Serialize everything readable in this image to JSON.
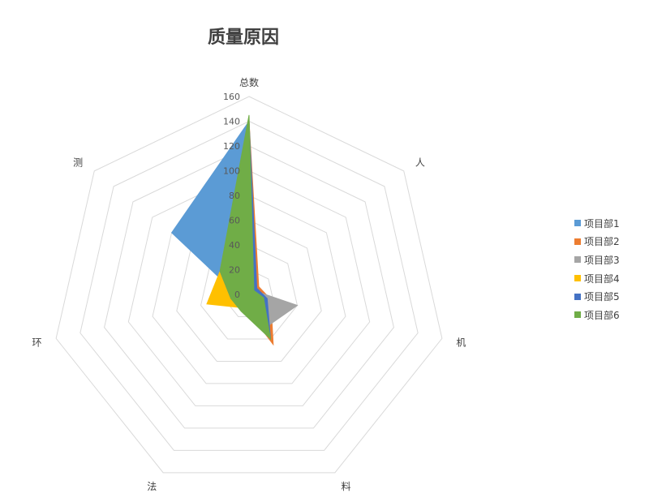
{
  "chart_data": {
    "type": "radar",
    "title": "质量原因",
    "categories": [
      "总数",
      "人",
      "机",
      "料",
      "法",
      "环",
      "测"
    ],
    "rlim": [
      0,
      160
    ],
    "ticks": [
      0,
      20,
      40,
      60,
      80,
      100,
      120,
      140,
      160
    ],
    "grid": true,
    "legend_position": "right",
    "series": [
      {
        "name": "项目部1",
        "color": "#5B9BD5",
        "values": [
          140,
          0,
          5,
          28,
          8,
          8,
          80
        ]
      },
      {
        "name": "项目部2",
        "color": "#ED7D31",
        "values": [
          140,
          10,
          18,
          45,
          10,
          10,
          30
        ]
      },
      {
        "name": "项目部3",
        "color": "#A5A5A5",
        "values": [
          140,
          5,
          40,
          30,
          10,
          12,
          30
        ]
      },
      {
        "name": "项目部4",
        "color": "#FFC000",
        "values": [
          140,
          5,
          10,
          20,
          12,
          35,
          30
        ]
      },
      {
        "name": "项目部5",
        "color": "#4472C4",
        "values": [
          140,
          8,
          15,
          40,
          14,
          15,
          30
        ]
      },
      {
        "name": "项目部6",
        "color": "#70AD47",
        "values": [
          145,
          5,
          12,
          40,
          15,
          15,
          30
        ]
      }
    ]
  }
}
